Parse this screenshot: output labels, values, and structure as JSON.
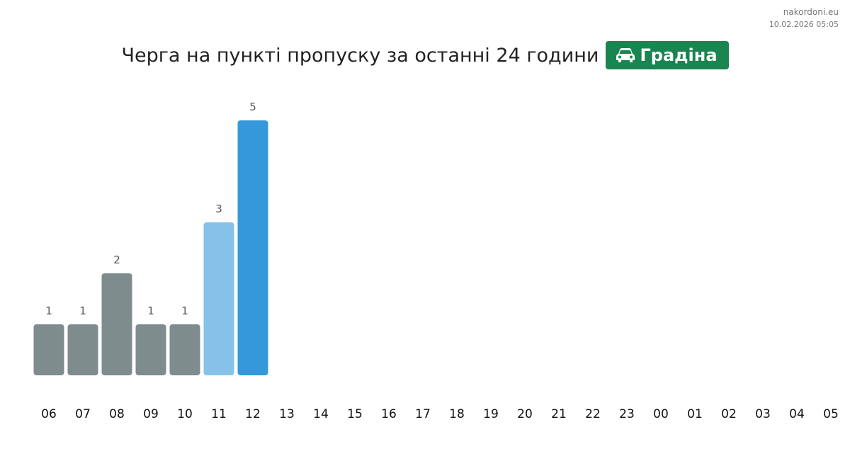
{
  "header": {
    "site": "nakordoni.eu",
    "timestamp": "10.02.2026 05:05"
  },
  "chart_data": {
    "type": "bar",
    "title": "Черга на пункті пропуску за останні 24 години",
    "location": "Градіна",
    "categories": [
      "06",
      "07",
      "08",
      "09",
      "10",
      "11",
      "12",
      "13",
      "14",
      "15",
      "16",
      "17",
      "18",
      "19",
      "20",
      "21",
      "22",
      "23",
      "00",
      "01",
      "02",
      "03",
      "04",
      "05"
    ],
    "values": [
      1,
      1,
      2,
      1,
      1,
      3,
      5,
      null,
      null,
      null,
      null,
      null,
      null,
      null,
      null,
      null,
      null,
      null,
      null,
      null,
      null,
      null,
      null,
      null
    ],
    "colors": [
      "#7f8c8d",
      "#7f8c8d",
      "#7f8c8d",
      "#7f8c8d",
      "#7f8c8d",
      "#85c1e9",
      "#3498db",
      null,
      null,
      null,
      null,
      null,
      null,
      null,
      null,
      null,
      null,
      null,
      null,
      null,
      null,
      null,
      null,
      null
    ]
  }
}
